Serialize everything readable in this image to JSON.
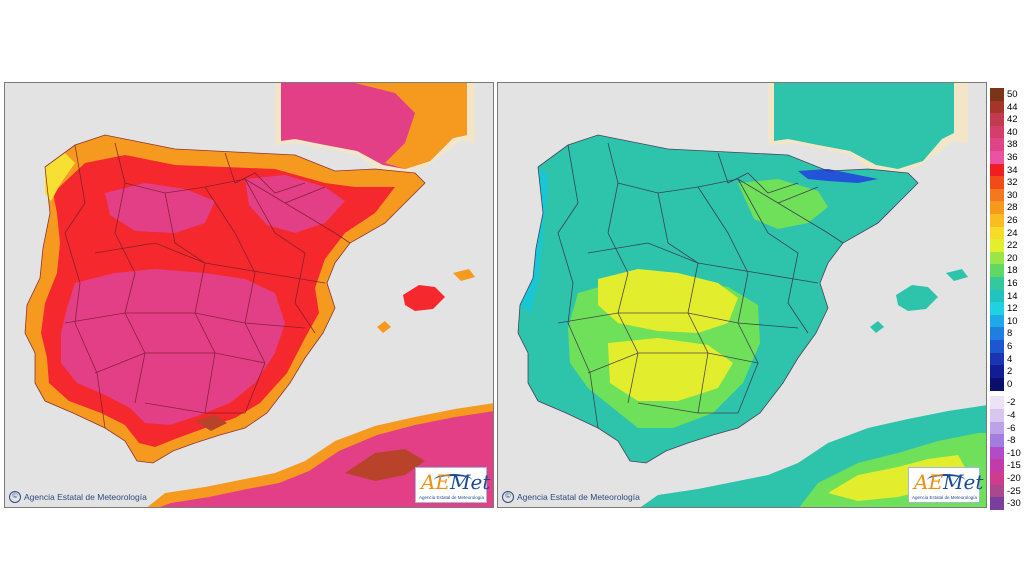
{
  "maps": [
    {
      "id": "max-temperature",
      "credit": "Agencia Estatal de Meteorología",
      "logo": {
        "brand_first": "AE",
        "brand_rest": "Met",
        "subtitle": "Agencia Estatal de Meteorología"
      },
      "palette": {
        "sea": "#e3e3e3",
        "dominant": "#e23f86",
        "secondary": "#f5282d",
        "edge": "#f59a1f",
        "mountain_cool": "#f7e032",
        "peak": "#b9432a",
        "foreign": "#f3e6c8"
      }
    },
    {
      "id": "min-temperature",
      "credit": "Agencia Estatal de Meteorología",
      "logo": {
        "brand_first": "AE",
        "brand_rest": "Met",
        "subtitle": "Agencia Estatal de Meteorología"
      },
      "palette": {
        "sea": "#e3e3e3",
        "dominant": "#2ec3ab",
        "secondary": "#6fe05a",
        "warm": "#e2ee2d",
        "cool": "#18c7d6",
        "coldest": "#2253d8",
        "foreign": "#f3e6c8"
      }
    }
  ],
  "legend": {
    "items": [
      {
        "label": "50",
        "color": "#7a3416"
      },
      {
        "label": "44",
        "color": "#a5352a"
      },
      {
        "label": "42",
        "color": "#c23a4f"
      },
      {
        "label": "40",
        "color": "#d53d6b"
      },
      {
        "label": "38",
        "color": "#e14486"
      },
      {
        "label": "36",
        "color": "#ec52a4"
      },
      {
        "label": "34",
        "color": "#f01e22"
      },
      {
        "label": "32",
        "color": "#f24b1a"
      },
      {
        "label": "30",
        "color": "#f5781e"
      },
      {
        "label": "28",
        "color": "#f7991f"
      },
      {
        "label": "26",
        "color": "#f9bd22"
      },
      {
        "label": "24",
        "color": "#f6dc26"
      },
      {
        "label": "22",
        "color": "#e3ef2c"
      },
      {
        "label": "20",
        "color": "#9ce547"
      },
      {
        "label": "18",
        "color": "#5fd864"
      },
      {
        "label": "16",
        "color": "#34c99d"
      },
      {
        "label": "14",
        "color": "#22c3bf"
      },
      {
        "label": "12",
        "color": "#1ed2e0"
      },
      {
        "label": "10",
        "color": "#1fa9ea"
      },
      {
        "label": "8",
        "color": "#1f7fe0"
      },
      {
        "label": "6",
        "color": "#1c56d0"
      },
      {
        "label": "4",
        "color": "#1a34b4"
      },
      {
        "label": "2",
        "color": "#101d93"
      },
      {
        "label": "0",
        "color": "#0a0f6e"
      },
      {
        "label": "-2",
        "color": "#ece3f6"
      },
      {
        "label": "-4",
        "color": "#d7c6ef"
      },
      {
        "label": "-6",
        "color": "#bea2e8"
      },
      {
        "label": "-8",
        "color": "#a27de0"
      },
      {
        "label": "-10",
        "color": "#b34bc8"
      },
      {
        "label": "-15",
        "color": "#c23ba8"
      },
      {
        "label": "-20",
        "color": "#cf3c8e"
      },
      {
        "label": "-25",
        "color": "#a9478f"
      },
      {
        "label": "-30",
        "color": "#7a3f9a"
      }
    ]
  }
}
